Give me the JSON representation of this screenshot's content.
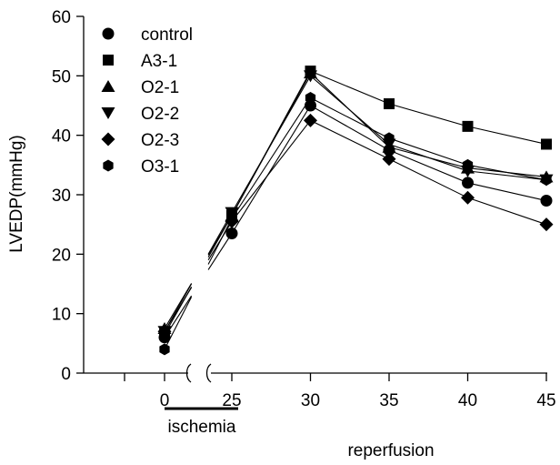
{
  "chart_data": {
    "type": "line",
    "title": "",
    "xlabel": "",
    "ylabel": "LVEDP(mmHg)",
    "ylim": [
      0,
      60
    ],
    "y_ticks": [
      0,
      10,
      20,
      30,
      40,
      50,
      60
    ],
    "x_ticks": [
      0,
      25,
      30,
      35,
      40,
      45
    ],
    "x_axis_break": "between 0 and 25",
    "grid": false,
    "legend_position": "top-left",
    "annotations": {
      "ischemia": "ischemia",
      "reperfusion": "reperfusion"
    },
    "x": [
      0,
      25,
      30,
      35,
      40,
      45
    ],
    "series": [
      {
        "name": "control",
        "marker": "circle",
        "values": [
          6,
          23.5,
          45,
          37.5,
          32,
          29
        ]
      },
      {
        "name": "A3-1",
        "marker": "square",
        "values": [
          6.5,
          26.5,
          50.8,
          45.3,
          41.5,
          38.5
        ]
      },
      {
        "name": "O2-1",
        "marker": "triangle-up",
        "values": [
          7.5,
          26.5,
          50.5,
          38,
          34.5,
          33
        ]
      },
      {
        "name": "O2-2",
        "marker": "triangle-down",
        "values": [
          7,
          27,
          50,
          38.5,
          34,
          32.5
        ]
      },
      {
        "name": "O2-3",
        "marker": "diamond",
        "values": [
          7,
          25.5,
          42.5,
          36,
          29.5,
          25
        ]
      },
      {
        "name": "O3-1",
        "marker": "hexagon",
        "values": [
          4,
          26,
          46.3,
          39.5,
          35,
          32.5
        ]
      }
    ]
  }
}
